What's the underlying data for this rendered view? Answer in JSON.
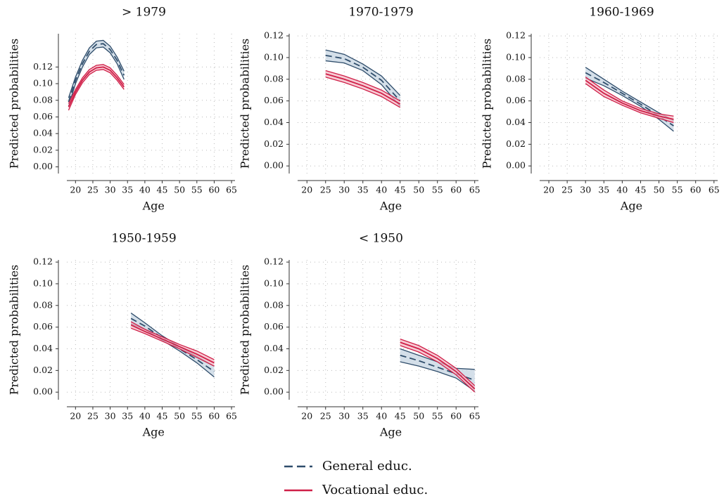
{
  "chart_data": [
    {
      "type": "line",
      "title": "> 1979",
      "xlabel": "Age",
      "ylabel": "Predicted probabilities",
      "x": [
        18,
        20,
        22,
        24,
        26,
        28,
        30,
        32,
        34
      ],
      "xlim": [
        17.5,
        66
      ],
      "xticks": [
        20,
        25,
        30,
        35,
        40,
        45,
        50,
        55,
        60,
        65
      ],
      "ylim": [
        -0.008,
        0.16
      ],
      "yticks": [
        {
          "value": 0,
          "label": "0.00"
        },
        {
          "value": 0.02,
          "label": "0.02"
        },
        {
          "value": 0.04,
          "label": "0.04"
        },
        {
          "value": 0.06,
          "label": "0.06"
        },
        {
          "value": 0.08,
          "label": "0.08"
        },
        {
          "value": 0.1,
          "label": "0.10"
        },
        {
          "value": 0.12,
          "label": "0.12"
        }
      ],
      "grid": true,
      "series": [
        {
          "name": "General educ.",
          "color": "#2f4d6b",
          "band_color": "#c6d4e1",
          "dashed": true,
          "values": [
            0.078,
            0.104,
            0.124,
            0.139,
            0.147,
            0.148,
            0.141,
            0.128,
            0.11
          ],
          "lower": [
            0.073,
            0.1,
            0.12,
            0.135,
            0.143,
            0.144,
            0.137,
            0.124,
            0.105
          ],
          "upper": [
            0.083,
            0.108,
            0.128,
            0.143,
            0.151,
            0.152,
            0.145,
            0.132,
            0.115
          ]
        },
        {
          "name": "Vocational educ.",
          "color": "#cf1f48",
          "band_color": "#f4b9c5",
          "dashed": false,
          "values": [
            0.072,
            0.09,
            0.104,
            0.114,
            0.119,
            0.12,
            0.116,
            0.107,
            0.096
          ],
          "lower": [
            0.068,
            0.087,
            0.101,
            0.111,
            0.116,
            0.117,
            0.113,
            0.104,
            0.093
          ],
          "upper": [
            0.076,
            0.093,
            0.107,
            0.117,
            0.122,
            0.123,
            0.119,
            0.11,
            0.099
          ]
        }
      ]
    },
    {
      "type": "line",
      "title": "1970-1979",
      "xlabel": "Age",
      "ylabel": "Predicted probabilities",
      "x": [
        25,
        30,
        35,
        40,
        45
      ],
      "xlim": [
        17.5,
        66
      ],
      "xticks": [
        20,
        25,
        30,
        35,
        40,
        45,
        50,
        55,
        60,
        65
      ],
      "ylim": [
        -0.007,
        0.122
      ],
      "yticks": [
        {
          "value": 0,
          "label": "0.00"
        },
        {
          "value": 0.02,
          "label": "0.02"
        },
        {
          "value": 0.04,
          "label": "0.04"
        },
        {
          "value": 0.06,
          "label": "0.06"
        },
        {
          "value": 0.08,
          "label": "0.08"
        },
        {
          "value": 0.1,
          "label": "0.10"
        },
        {
          "value": 0.12,
          "label": "0.12"
        }
      ],
      "grid": true,
      "series": [
        {
          "name": "General educ.",
          "color": "#2f4d6b",
          "band_color": "#c6d4e1",
          "dashed": true,
          "values": [
            0.102,
            0.099,
            0.091,
            0.079,
            0.06
          ],
          "lower": [
            0.097,
            0.095,
            0.088,
            0.075,
            0.055
          ],
          "upper": [
            0.107,
            0.103,
            0.094,
            0.083,
            0.065
          ]
        },
        {
          "name": "Vocational educ.",
          "color": "#cf1f48",
          "band_color": "#f4b9c5",
          "dashed": false,
          "values": [
            0.085,
            0.08,
            0.074,
            0.067,
            0.057
          ],
          "lower": [
            0.082,
            0.077,
            0.071,
            0.064,
            0.054
          ],
          "upper": [
            0.088,
            0.083,
            0.077,
            0.07,
            0.06
          ]
        }
      ]
    },
    {
      "type": "line",
      "title": "1960-1969",
      "xlabel": "Age",
      "ylabel": "Predicted probabilities",
      "x": [
        30,
        35,
        40,
        45,
        50,
        54
      ],
      "xlim": [
        17.5,
        66
      ],
      "xticks": [
        20,
        25,
        30,
        35,
        40,
        45,
        50,
        55,
        60,
        65
      ],
      "ylim": [
        -0.007,
        0.122
      ],
      "yticks": [
        {
          "value": 0,
          "label": "0.00"
        },
        {
          "value": 0.02,
          "label": "0.02"
        },
        {
          "value": 0.04,
          "label": "0.04"
        },
        {
          "value": 0.06,
          "label": "0.06"
        },
        {
          "value": 0.08,
          "label": "0.08"
        },
        {
          "value": 0.1,
          "label": "0.10"
        },
        {
          "value": 0.12,
          "label": "0.12"
        }
      ],
      "grid": true,
      "series": [
        {
          "name": "General educ.",
          "color": "#2f4d6b",
          "band_color": "#c6d4e1",
          "dashed": true,
          "values": [
            0.086,
            0.077,
            0.067,
            0.057,
            0.046,
            0.037
          ],
          "lower": [
            0.081,
            0.074,
            0.065,
            0.055,
            0.043,
            0.032
          ],
          "upper": [
            0.091,
            0.08,
            0.069,
            0.059,
            0.049,
            0.042
          ]
        },
        {
          "name": "Vocational educ.",
          "color": "#cf1f48",
          "band_color": "#f4b9c5",
          "dashed": false,
          "values": [
            0.079,
            0.067,
            0.058,
            0.051,
            0.046,
            0.043
          ],
          "lower": [
            0.076,
            0.064,
            0.056,
            0.049,
            0.044,
            0.04
          ],
          "upper": [
            0.082,
            0.07,
            0.06,
            0.053,
            0.048,
            0.046
          ]
        }
      ]
    },
    {
      "type": "line",
      "title": "1950-1959",
      "xlabel": "Age",
      "ylabel": "Predicted probabilities",
      "x": [
        36,
        40,
        45,
        50,
        55,
        60
      ],
      "xlim": [
        17.5,
        66
      ],
      "xticks": [
        20,
        25,
        30,
        35,
        40,
        45,
        50,
        55,
        60,
        65
      ],
      "ylim": [
        -0.007,
        0.122
      ],
      "yticks": [
        {
          "value": 0,
          "label": "0.00"
        },
        {
          "value": 0.02,
          "label": "0.02"
        },
        {
          "value": 0.04,
          "label": "0.04"
        },
        {
          "value": 0.06,
          "label": "0.06"
        },
        {
          "value": 0.08,
          "label": "0.08"
        },
        {
          "value": 0.1,
          "label": "0.10"
        },
        {
          "value": 0.12,
          "label": "0.12"
        }
      ],
      "grid": true,
      "series": [
        {
          "name": "General educ.",
          "color": "#2f4d6b",
          "band_color": "#c6d4e1",
          "dashed": true,
          "values": [
            0.068,
            0.061,
            0.05,
            0.04,
            0.03,
            0.019
          ],
          "lower": [
            0.063,
            0.058,
            0.048,
            0.038,
            0.027,
            0.014
          ],
          "upper": [
            0.073,
            0.064,
            0.052,
            0.042,
            0.033,
            0.024
          ]
        },
        {
          "name": "Vocational educ.",
          "color": "#cf1f48",
          "band_color": "#f4b9c5",
          "dashed": false,
          "values": [
            0.062,
            0.056,
            0.049,
            0.042,
            0.035,
            0.027
          ],
          "lower": [
            0.059,
            0.054,
            0.047,
            0.04,
            0.032,
            0.024
          ],
          "upper": [
            0.065,
            0.058,
            0.051,
            0.044,
            0.038,
            0.03
          ]
        }
      ]
    },
    {
      "type": "line",
      "title": "< 1950",
      "xlabel": "Age",
      "ylabel": "Predicted probabilities",
      "x": [
        45,
        50,
        55,
        60,
        65
      ],
      "xlim": [
        17.5,
        66
      ],
      "xticks": [
        20,
        25,
        30,
        35,
        40,
        45,
        50,
        55,
        60,
        65
      ],
      "ylim": [
        -0.007,
        0.122
      ],
      "yticks": [
        {
          "value": 0,
          "label": "0.00"
        },
        {
          "value": 0.02,
          "label": "0.02"
        },
        {
          "value": 0.04,
          "label": "0.04"
        },
        {
          "value": 0.06,
          "label": "0.06"
        },
        {
          "value": 0.08,
          "label": "0.08"
        },
        {
          "value": 0.1,
          "label": "0.10"
        },
        {
          "value": 0.12,
          "label": "0.12"
        }
      ],
      "grid": true,
      "series": [
        {
          "name": "General educ.",
          "color": "#2f4d6b",
          "band_color": "#c6d4e1",
          "dashed": true,
          "values": [
            0.034,
            0.029,
            0.023,
            0.017,
            0.011
          ],
          "lower": [
            0.028,
            0.024,
            0.019,
            0.013,
            0.001
          ],
          "upper": [
            0.04,
            0.034,
            0.028,
            0.022,
            0.021
          ]
        },
        {
          "name": "Vocational educ.",
          "color": "#cf1f48",
          "band_color": "#f4b9c5",
          "dashed": false,
          "values": [
            0.046,
            0.04,
            0.031,
            0.019,
            0.003
          ],
          "lower": [
            0.043,
            0.037,
            0.028,
            0.016,
            0.0
          ],
          "upper": [
            0.049,
            0.043,
            0.034,
            0.022,
            0.006
          ]
        }
      ]
    }
  ]
}
